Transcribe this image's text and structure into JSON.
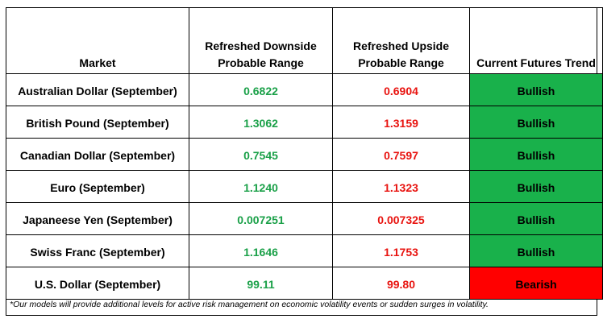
{
  "table": {
    "headers": {
      "market": "Market",
      "downside": "Refreshed Downside Probable Range",
      "upside": "Refreshed Upside Probable Range",
      "trend": "Current Futures Trend"
    },
    "rows": [
      {
        "market": "Australian Dollar  (September)",
        "downside": "0.6822",
        "upside": "0.6904",
        "trend": "Bullish"
      },
      {
        "market": "British Pound  (September)",
        "downside": "1.3062",
        "upside": "1.3159",
        "trend": "Bullish"
      },
      {
        "market": "Canadian Dollar  (September)",
        "downside": "0.7545",
        "upside": "0.7597",
        "trend": "Bullish"
      },
      {
        "market": "Euro  (September)",
        "downside": "1.1240",
        "upside": "1.1323",
        "trend": "Bullish"
      },
      {
        "market": "Japaneese Yen (September)",
        "downside": "0.007251",
        "upside": "0.007325",
        "trend": "Bullish"
      },
      {
        "market": "Swiss Franc  (September)",
        "downside": "1.1646",
        "upside": "1.1753",
        "trend": "Bullish"
      },
      {
        "market": "U.S. Dollar  (September)",
        "downside": "99.11",
        "upside": "99.80",
        "trend": "Bearish"
      }
    ]
  },
  "footnote": "*Our models will provide additional levels for active risk management on economic volatility events or sudden surges in volatility.",
  "colors": {
    "downside_text": "#1aa048",
    "upside_text": "#e8130f",
    "bullish_fill": "#19b14b",
    "bearish_fill": "#ff0000"
  }
}
